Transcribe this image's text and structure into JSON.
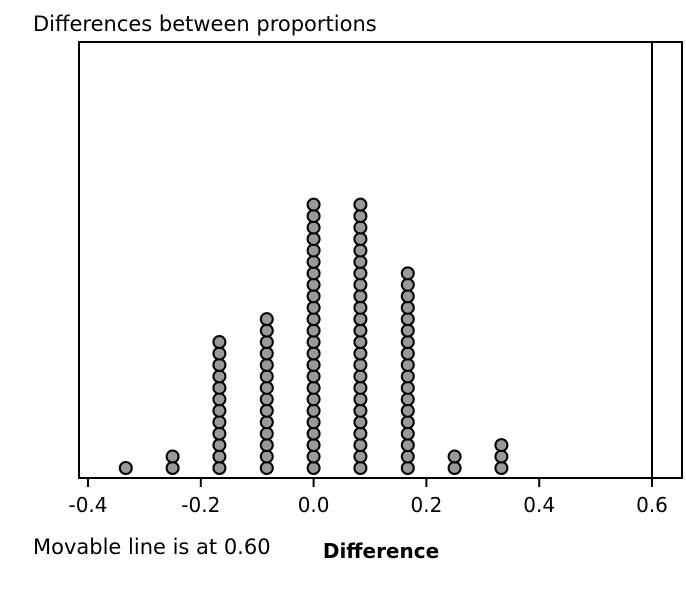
{
  "chart_data": {
    "type": "dotplot",
    "title": "Differences between proportions",
    "xlabel": "Difference",
    "xlim": [
      -0.45,
      0.66
    ],
    "xticks": [
      -0.4,
      -0.2,
      0.0,
      0.2,
      0.4,
      0.6
    ],
    "xtick_labels": [
      "-0.4",
      "-0.2",
      "0.0",
      "0.2",
      "0.4",
      "0.6"
    ],
    "points": [
      {
        "x": -0.333,
        "count": 1
      },
      {
        "x": -0.25,
        "count": 2
      },
      {
        "x": -0.167,
        "count": 12
      },
      {
        "x": -0.083,
        "count": 14
      },
      {
        "x": 0.0,
        "count": 24
      },
      {
        "x": 0.083,
        "count": 24
      },
      {
        "x": 0.167,
        "count": 18
      },
      {
        "x": 0.25,
        "count": 2
      },
      {
        "x": 0.333,
        "count": 3
      }
    ],
    "movable_line_x": 0.6,
    "dot_fill": "#999999",
    "dot_stroke": "#000000"
  },
  "status": {
    "movable_line_text": "Movable line is at 0.60"
  }
}
